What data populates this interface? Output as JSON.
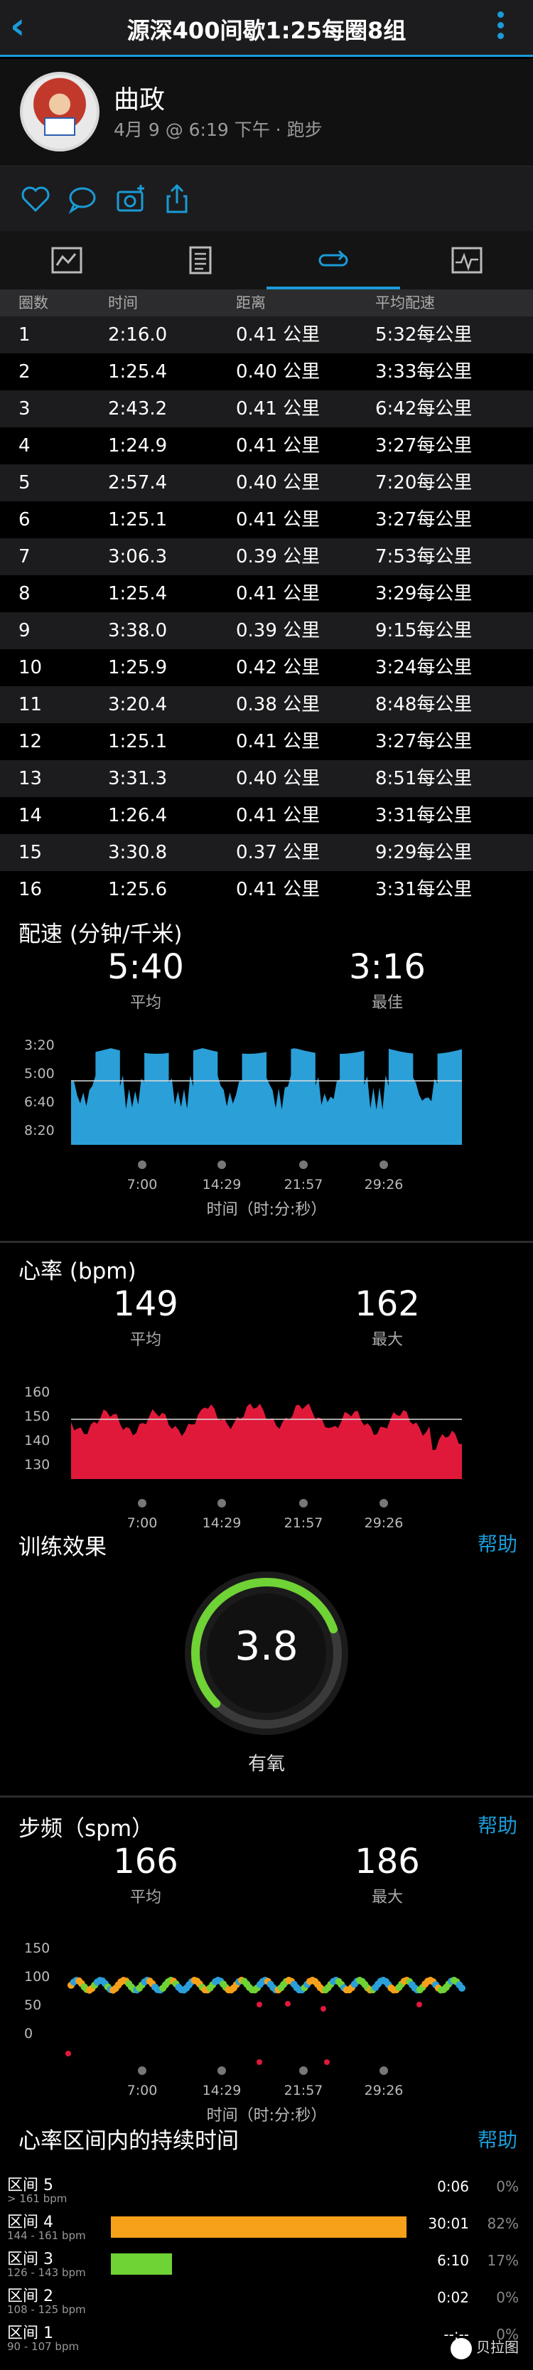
{
  "header": {
    "title": "源深400间歇1:25每圈8组"
  },
  "profile": {
    "name": "曲政",
    "meta": "4月 9 @ 6:19 下午 · 跑步"
  },
  "actions": [
    "like-icon",
    "comment-icon",
    "camera-icon",
    "share-icon"
  ],
  "tabs": [
    "summary-icon",
    "details-icon",
    "laps-icon",
    "chart-icon"
  ],
  "laps": {
    "headers": [
      "圈数",
      "时间",
      "距离",
      "平均配速"
    ],
    "rows": [
      [
        "1",
        "2:16.0",
        "0.41 公里",
        "5:32每公里"
      ],
      [
        "2",
        "1:25.4",
        "0.40 公里",
        "3:33每公里"
      ],
      [
        "3",
        "2:43.2",
        "0.41 公里",
        "6:42每公里"
      ],
      [
        "4",
        "1:24.9",
        "0.41 公里",
        "3:27每公里"
      ],
      [
        "5",
        "2:57.4",
        "0.40 公里",
        "7:20每公里"
      ],
      [
        "6",
        "1:25.1",
        "0.41 公里",
        "3:27每公里"
      ],
      [
        "7",
        "3:06.3",
        "0.39 公里",
        "7:53每公里"
      ],
      [
        "8",
        "1:25.4",
        "0.41 公里",
        "3:29每公里"
      ],
      [
        "9",
        "3:38.0",
        "0.39 公里",
        "9:15每公里"
      ],
      [
        "10",
        "1:25.9",
        "0.42 公里",
        "3:24每公里"
      ],
      [
        "11",
        "3:20.4",
        "0.38 公里",
        "8:48每公里"
      ],
      [
        "12",
        "1:25.1",
        "0.41 公里",
        "3:27每公里"
      ],
      [
        "13",
        "3:31.3",
        "0.40 公里",
        "8:51每公里"
      ],
      [
        "14",
        "1:26.4",
        "0.41 公里",
        "3:31每公里"
      ],
      [
        "15",
        "3:30.8",
        "0.37 公里",
        "9:29每公里"
      ],
      [
        "16",
        "1:25.6",
        "0.41 公里",
        "3:31每公里"
      ]
    ]
  },
  "pace": {
    "title": "配速 (分钟/千米)",
    "avg": "5:40",
    "avg_label": "平均",
    "best": "3:16",
    "best_label": "最佳",
    "yticks": [
      "3:20",
      "5:00",
      "6:40",
      "8:20"
    ],
    "xticks": [
      "7:00",
      "14:29",
      "21:57",
      "29:26"
    ],
    "xlabel": "时间（时:分:秒）",
    "color": "#2b9fd8"
  },
  "heart": {
    "title": "心率 (bpm)",
    "avg": "149",
    "avg_label": "平均",
    "max": "162",
    "max_label": "最大",
    "yticks": [
      "160",
      "150",
      "140",
      "130"
    ],
    "xticks": [
      "7:00",
      "14:29",
      "21:57",
      "29:26"
    ],
    "color": "#e0193a"
  },
  "training": {
    "title": "训练效果",
    "help": "帮助",
    "value": "3.8",
    "label": "有氧",
    "level": 3.8,
    "max_level": 5,
    "color": "#6fd235"
  },
  "cadence": {
    "title": "步频（spm）",
    "help": "帮助",
    "avg": "166",
    "avg_label": "平均",
    "max": "186",
    "max_label": "最大",
    "yticks": [
      "150",
      "100",
      "50",
      "0"
    ],
    "xticks": [
      "7:00",
      "14:29",
      "21:57",
      "29:26"
    ],
    "xlabel": "时间（时:分:秒）"
  },
  "zones": {
    "title": "心率区间内的持续时间",
    "help": "帮助",
    "rows": [
      {
        "name": "区间 5",
        "range": "> 161 bpm",
        "time": "0:06",
        "pct": "0%",
        "pct_value": 0,
        "color": "#ff3b30"
      },
      {
        "name": "区间 4",
        "range": "144 - 161 bpm",
        "time": "30:01",
        "pct": "82%",
        "pct_value": 82,
        "color": "#f7a11a"
      },
      {
        "name": "区间 3",
        "range": "126 - 143 bpm",
        "time": "6:10",
        "pct": "17%",
        "pct_value": 17,
        "color": "#6fd235"
      },
      {
        "name": "区间 2",
        "range": "108 - 125 bpm",
        "time": "0:02",
        "pct": "0%",
        "pct_value": 0,
        "color": "#1a9bd7"
      },
      {
        "name": "区间 1",
        "range": "90 - 107 bpm",
        "time": "--:--",
        "pct": "0%",
        "pct_value": 0,
        "color": "#999"
      }
    ]
  },
  "watermark": "贝拉图"
}
